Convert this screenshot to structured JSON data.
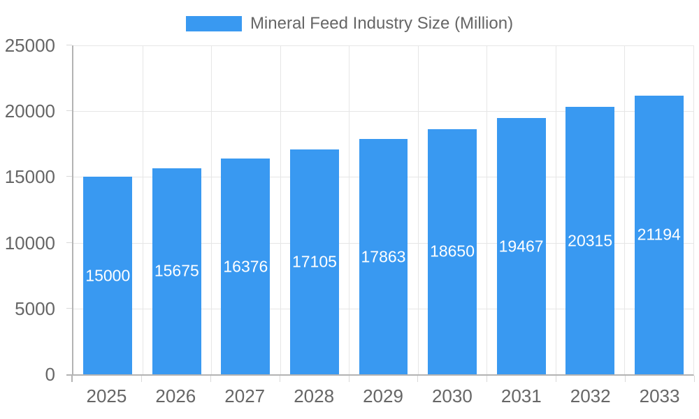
{
  "legend": {
    "label": "Mineral Feed Industry Size (Million)"
  },
  "chart_data": {
    "type": "bar",
    "title": "Mineral Feed Industry Size (Million)",
    "categories": [
      "2025",
      "2026",
      "2027",
      "2028",
      "2029",
      "2030",
      "2031",
      "2032",
      "2033"
    ],
    "values": [
      15000,
      15675,
      16376,
      17105,
      17863,
      18650,
      19467,
      20315,
      21194
    ],
    "series": [
      {
        "name": "Mineral Feed Industry Size (Million)",
        "values": [
          15000,
          15675,
          16376,
          17105,
          17863,
          18650,
          19467,
          20315,
          21194
        ]
      }
    ],
    "xlabel": "",
    "ylabel": "",
    "ylim": [
      0,
      25000
    ],
    "y_ticks": [
      0,
      5000,
      10000,
      15000,
      20000,
      25000
    ],
    "grid": "horizontal gridlines every 5000 plus vertical gridlines at category boundaries",
    "legend_position": "top-center",
    "value_labels": "inside bars, white, centered"
  },
  "colors": {
    "bar": "#3999F1",
    "grid": "#e6e6e6",
    "axis": "#b3b3b3",
    "tick": "#d9d9d9",
    "tick_text": "#666666",
    "legend_text": "#666666",
    "value_label": "#ffffff",
    "background": "#ffffff"
  }
}
